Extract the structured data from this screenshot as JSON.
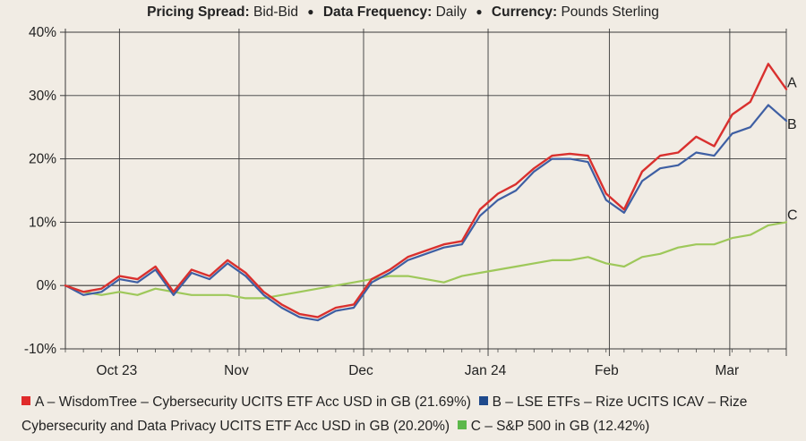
{
  "header": [
    {
      "label": "Pricing Spread:",
      "value": "Bid-Bid"
    },
    {
      "label": "Data Frequency:",
      "value": "Daily"
    },
    {
      "label": "Currency:",
      "value": "Pounds Sterling"
    }
  ],
  "chart_data": {
    "type": "line",
    "ylim": [
      -10,
      40
    ],
    "y_ticks": [
      "40%",
      "30%",
      "20%",
      "10%",
      "0%",
      "-10%"
    ],
    "x_ticks": [
      "Oct 23",
      "Nov",
      "Dec",
      "Jan 24",
      "Feb",
      "Mar"
    ],
    "grid": true,
    "legend_position": "bottom",
    "series": [
      {
        "name": "A – WisdomTree – Cybersecurity UCITS ETF Acc USD in GB (21.69%)",
        "end_label": "A",
        "color": "#d9302e",
        "x": [
          0,
          5,
          10,
          15,
          20,
          25,
          30,
          35,
          40,
          45,
          50,
          55,
          60,
          65,
          70,
          75,
          80,
          85,
          90,
          95,
          100,
          105,
          110,
          114
        ],
        "values": [
          0,
          -1,
          1,
          3,
          4,
          1,
          -3,
          -4.5,
          -2,
          2,
          6,
          7,
          12,
          15,
          19,
          20.5,
          20,
          12,
          19,
          21,
          24,
          27,
          33,
          36
        ]
      },
      {
        "name": "B – LSE ETFs – Rize UCITS ICAV – Rize Cybersecurity and Data Privacy UCITS ETF Acc USD in GB (20.20%)",
        "end_label": "B",
        "color": "#3e5fa3",
        "values": [
          0,
          -1.5,
          0.5,
          2.5,
          3.5,
          0.5,
          -3,
          -5,
          -2.5,
          1.5,
          5.5,
          6.5,
          11,
          14,
          18,
          20,
          19.5,
          11.5,
          17,
          19,
          21,
          23,
          27,
          28
        ]
      },
      {
        "name": "C – S&P 500 in GB (12.42%)",
        "end_label": "C",
        "color": "#9ec85a",
        "values": [
          0,
          -1,
          -1.5,
          -1,
          -0.5,
          -1,
          -1.5,
          -1.5,
          -0.5,
          1,
          1,
          0.5,
          1.5,
          3,
          3.5,
          4,
          4.5,
          3,
          5,
          6,
          7,
          8,
          10,
          10.5
        ]
      }
    ],
    "x_days": [
      0,
      4.4,
      8.8,
      13.2,
      17.6,
      22,
      26.4,
      30.8,
      35.2,
      39.6,
      44,
      48.4,
      52.8,
      57.2,
      61.6,
      66,
      70.4,
      74.8,
      79.2,
      83.6,
      88,
      92.4,
      96.8,
      101.2,
      105.6,
      110,
      114.4,
      118.8,
      123.2,
      127.6,
      132,
      136.4,
      140.8,
      145.2,
      149.6,
      154,
      158.4,
      162.8,
      167.2,
      171.6,
      176
    ],
    "values_full": {
      "A": [
        0,
        -1,
        -0.5,
        1.5,
        1,
        3,
        -1,
        2.5,
        1.5,
        4,
        2,
        -1,
        -3,
        -4.5,
        -5,
        -3.5,
        -3,
        1,
        2.5,
        4.5,
        5.5,
        6.5,
        7,
        12,
        14.5,
        16,
        18.5,
        20.5,
        20.8,
        20.5,
        14.5,
        12,
        18,
        20.5,
        21,
        23.5,
        22,
        27,
        29,
        35,
        31
      ],
      "B": [
        0,
        -1.5,
        -1,
        1,
        0.5,
        2.5,
        -1.5,
        2,
        1,
        3.5,
        1.5,
        -1.5,
        -3.5,
        -5,
        -5.5,
        -4,
        -3.5,
        0.5,
        2,
        4,
        5,
        6,
        6.5,
        11,
        13.5,
        15,
        18,
        20,
        20,
        19.5,
        13.5,
        11.5,
        16.5,
        18.5,
        19,
        21,
        20.5,
        24,
        25,
        28.5,
        26
      ],
      "C": [
        0,
        -1,
        -1.5,
        -1,
        -1.5,
        -0.5,
        -1,
        -1.5,
        -1.5,
        -1.5,
        -2,
        -2,
        -1.5,
        -1,
        -0.5,
        0,
        0.5,
        1,
        1.5,
        1.5,
        1,
        0.5,
        1.5,
        2,
        2.5,
        3,
        3.5,
        4,
        4,
        4.5,
        3.5,
        3,
        4.5,
        5,
        6,
        6.5,
        6.5,
        7.5,
        8,
        9.5,
        10
      ]
    }
  },
  "legend": [
    {
      "swatch_color": "#e02b2b",
      "text": "A – WisdomTree – Cybersecurity UCITS ETF Acc USD in GB (21.69%)"
    },
    {
      "swatch_color": "#1f4a8c",
      "text": "B – LSE ETFs – Rize UCITS ICAV – Rize Cybersecurity and Data Privacy UCITS ETF Acc USD in GB (20.20%)"
    },
    {
      "swatch_color": "#5cb84a",
      "text": "C – S&P 500 in GB (12.42%)"
    }
  ]
}
